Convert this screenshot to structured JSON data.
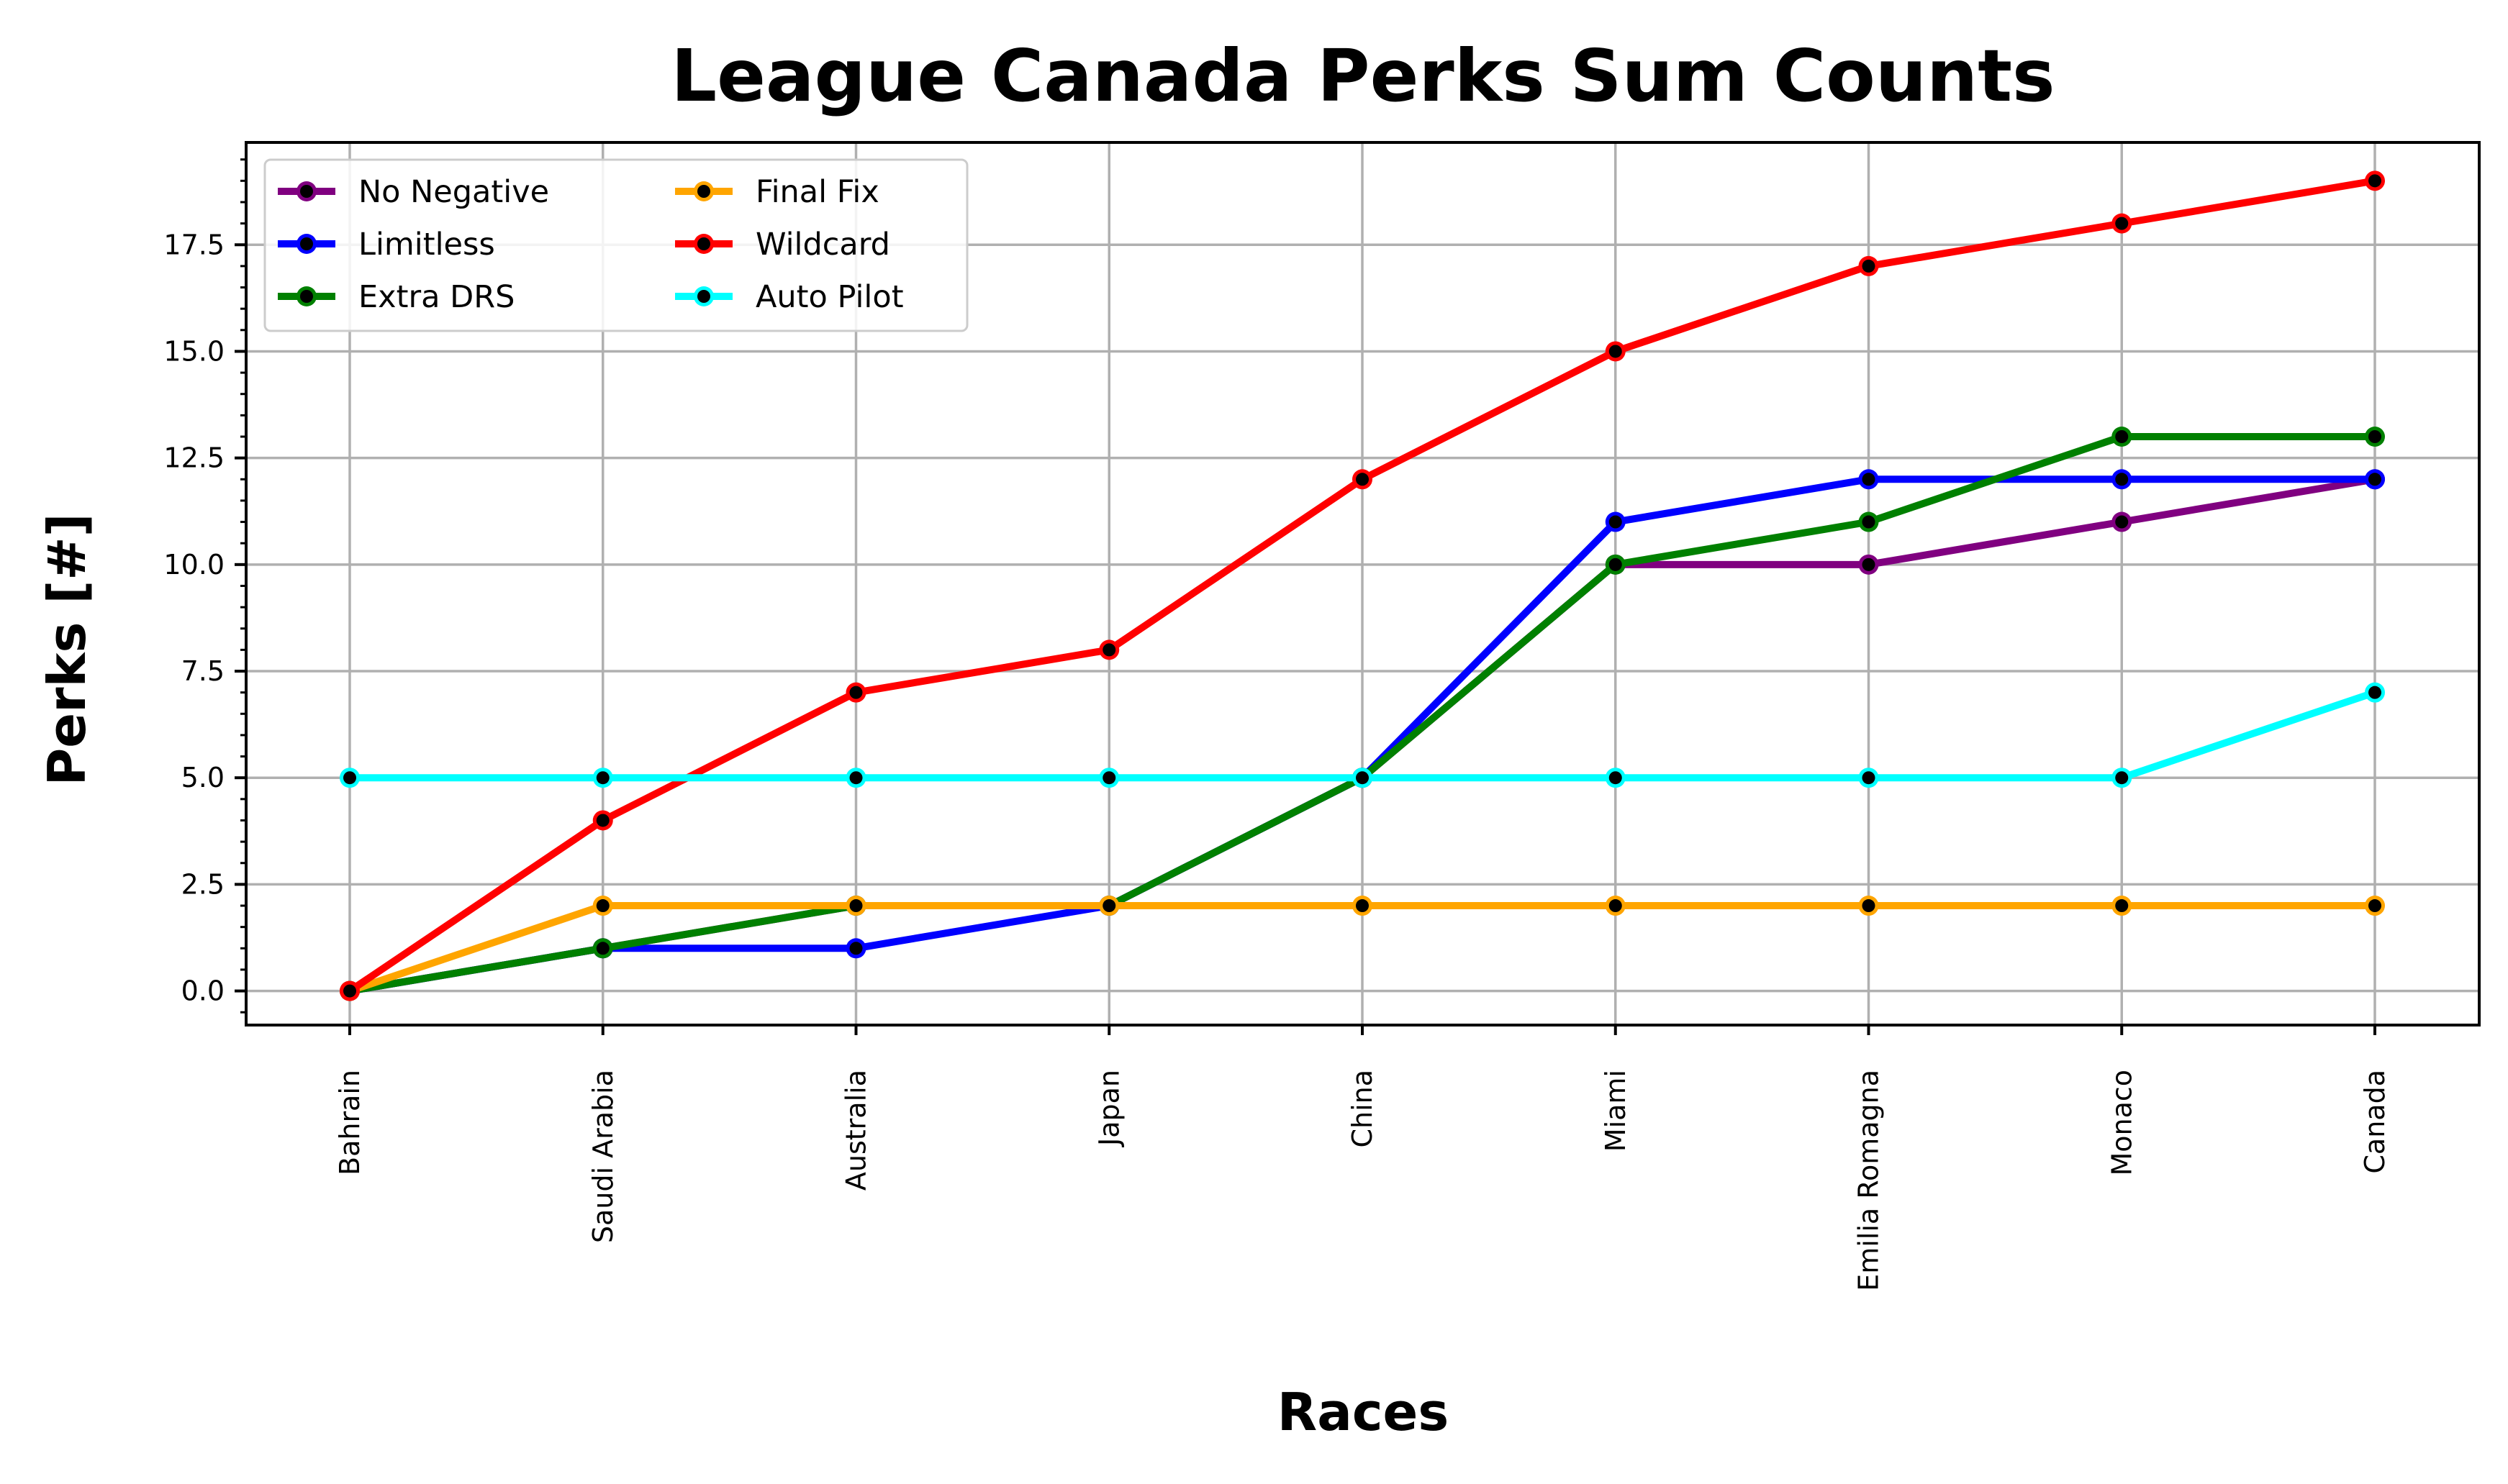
{
  "chart_data": {
    "type": "line",
    "title": "League Canada Perks Sum Counts",
    "xlabel": "Races",
    "ylabel": "Perks [#]",
    "categories": [
      "Bahrain",
      "Saudi Arabia",
      "Australia",
      "Japan",
      "China",
      "Miami",
      "Emilia Romagna",
      "Monaco",
      "Canada"
    ],
    "ylim": [
      -0.8,
      19.9
    ],
    "yticks": [
      0.0,
      2.5,
      5.0,
      7.5,
      10.0,
      12.5,
      15.0,
      17.5
    ],
    "ytick_labels": [
      "0.0",
      "2.5",
      "5.0",
      "7.5",
      "10.0",
      "12.5",
      "15.0",
      "17.5"
    ],
    "grid": true,
    "legend_position": "top-left",
    "legend_columns": 2,
    "series": [
      {
        "name": "No Negative",
        "color": "#800080",
        "values": [
          0,
          1,
          2,
          2,
          5,
          10,
          10,
          11,
          12
        ]
      },
      {
        "name": "Limitless",
        "color": "#0000ff",
        "values": [
          0,
          1,
          1,
          2,
          5,
          11,
          12,
          12,
          12
        ]
      },
      {
        "name": "Extra DRS",
        "color": "#008000",
        "values": [
          0,
          1,
          2,
          2,
          5,
          10,
          11,
          13,
          13
        ]
      },
      {
        "name": "Final Fix",
        "color": "#ffa500",
        "values": [
          0,
          2,
          2,
          2,
          2,
          2,
          2,
          2,
          2
        ]
      },
      {
        "name": "Wildcard",
        "color": "#ff0000",
        "values": [
          0,
          4,
          7,
          8,
          12,
          15,
          17,
          18,
          19
        ]
      },
      {
        "name": "Auto Pilot",
        "color": "#00ffff",
        "values": [
          5,
          5,
          5,
          5,
          5,
          5,
          5,
          5,
          7
        ]
      }
    ],
    "marker_center_color": "#000000"
  }
}
